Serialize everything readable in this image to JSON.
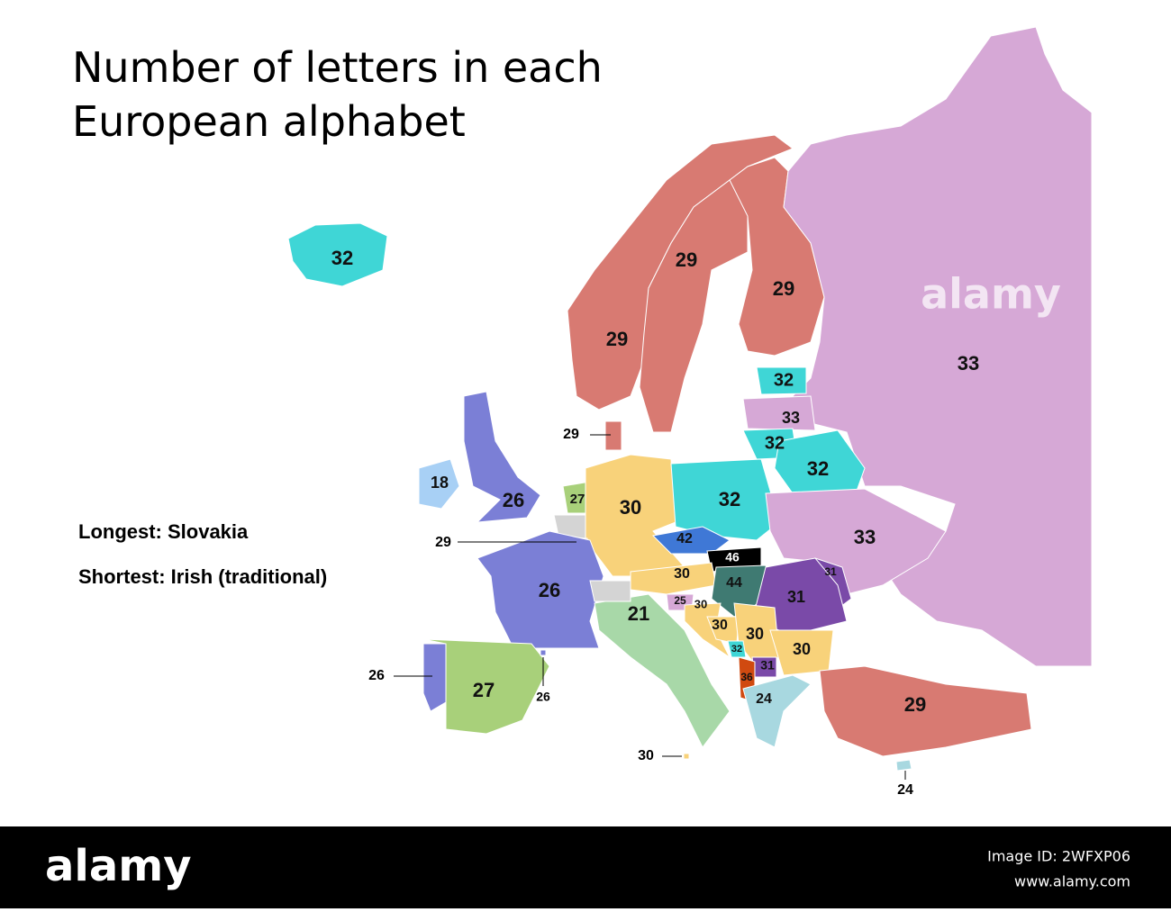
{
  "title": "Number of letters in each European alphabet",
  "notes": [
    "Longest: Slovakia",
    "Shortest: Irish (traditional)"
  ],
  "watermark": "alamy",
  "footer": {
    "brand": "alamy",
    "image_id": "Image ID: 2WFXP06",
    "url": "www.alamy.com"
  },
  "regions": [
    {
      "value": 32,
      "color": "#3fd6d6"
    },
    {
      "value": 29,
      "color": "#d87a72"
    },
    {
      "value": 29,
      "color": "#d87a72"
    },
    {
      "value": 29,
      "color": "#d87a72"
    },
    {
      "value": 33,
      "color": "#d6a8d6"
    },
    {
      "value": 32,
      "color": "#3fd6d6"
    },
    {
      "value": 33,
      "color": "#d6a8d6"
    },
    {
      "value": 32,
      "color": "#3fd6d6"
    },
    {
      "value": 32,
      "color": "#3fd6d6"
    },
    {
      "value": 29,
      "color": "#d87a72"
    },
    {
      "value": 18,
      "color": "#a8d0f5"
    },
    {
      "value": 26,
      "color": "#7b7fd6"
    },
    {
      "value": 27,
      "color": "#a8d07a"
    },
    {
      "value": 30,
      "color": "#f8d27a"
    },
    {
      "value": 32,
      "color": "#3fd6d6"
    },
    {
      "value": 33,
      "color": "#d6a8d6"
    },
    {
      "value": 29,
      "color": "#d87a72"
    },
    {
      "value": 42,
      "color": "#3f78d6"
    },
    {
      "value": 46,
      "color": "#000000"
    },
    {
      "value": 26,
      "color": "#7b7fd6"
    },
    {
      "value": 30,
      "color": "#f8d27a"
    },
    {
      "value": 44,
      "color": "#3f7a72"
    },
    {
      "value": 31,
      "color": "#7a4aa8"
    },
    {
      "value": 31,
      "color": "#7a4aa8"
    },
    {
      "value": 21,
      "color": "#a8d8a8"
    },
    {
      "value": 25,
      "color": "#d6a8d6"
    },
    {
      "value": 30,
      "color": "#f8d27a"
    },
    {
      "value": 30,
      "color": "#f8d27a"
    },
    {
      "value": 30,
      "color": "#f8d27a"
    },
    {
      "value": 30,
      "color": "#f8d27a"
    },
    {
      "value": 32,
      "color": "#3fd6d6"
    },
    {
      "value": 31,
      "color": "#7a4aa8"
    },
    {
      "value": 36,
      "color": "#d04a10"
    },
    {
      "value": 24,
      "color": "#a8d8e0"
    },
    {
      "value": 26,
      "color": "#7b7fd6"
    },
    {
      "value": 27,
      "color": "#a8d07a"
    },
    {
      "value": 26,
      "color": "#7b7fd6"
    },
    {
      "value": 29,
      "color": "#d87a72"
    },
    {
      "value": 30,
      "color": "#f8d27a"
    },
    {
      "value": 24,
      "color": "#a8d8e0"
    }
  ]
}
